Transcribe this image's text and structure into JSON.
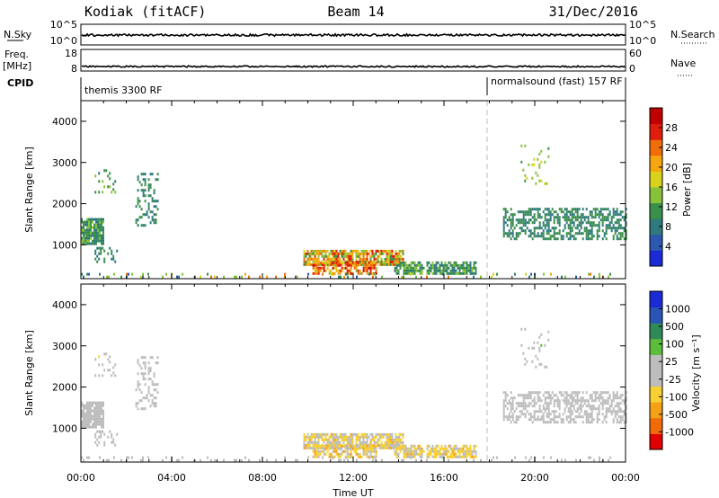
{
  "header": {
    "station": "Kodiak (fitACF)",
    "beam": "Beam 14",
    "date": "31/Dec/2016"
  },
  "strips": {
    "nsky_label": "N.Sky",
    "nsky_ticks": [
      "10^5",
      "10^0"
    ],
    "nsearch_label": "N.Search",
    "nsearch_ticks": [
      "10^5",
      "10^0"
    ],
    "freq_label_1": "Freq.",
    "freq_label_2": "[MHz]",
    "freq_ticks": [
      "18",
      "8"
    ],
    "nave_label": "Nave",
    "nave_ticks": [
      "60",
      "0"
    ],
    "cpid_label": "CPID",
    "cpid_mode_1": "themis 3300 RF",
    "cpid_mode_2": "normalsound (fast) 157 RF"
  },
  "chart_data": [
    {
      "type": "heatmap",
      "name": "power",
      "ylabel": "Slant Range [km]",
      "yticks": [
        1000,
        2000,
        3000,
        4000
      ],
      "ylim": [
        180,
        4500
      ],
      "xlim_hours": [
        0,
        24
      ],
      "colorbar": {
        "label": "Power [dB]",
        "ticks": [
          "4",
          "8",
          "12",
          "16",
          "20",
          "24",
          "28"
        ],
        "colors": [
          "#1a2bd6",
          "#2d58b0",
          "#2f7a7e",
          "#3b8f4a",
          "#86c23a",
          "#d8d21c",
          "#f5a50f",
          "#f06d0a",
          "#e01c0c",
          "#c00000"
        ],
        "range": [
          0,
          30
        ]
      },
      "regions": [
        {
          "t": [
            0.0,
            1.0
          ],
          "r": [
            1050,
            1650
          ],
          "v": [
            6,
            14
          ],
          "d": 0.9
        },
        {
          "t": [
            0.6,
            1.6
          ],
          "r": [
            600,
            950
          ],
          "v": [
            6,
            12
          ],
          "d": 0.4
        },
        {
          "t": [
            0.6,
            1.5
          ],
          "r": [
            2250,
            2900
          ],
          "v": [
            8,
            14
          ],
          "d": 0.25
        },
        {
          "t": [
            2.4,
            3.4
          ],
          "r": [
            1500,
            2750
          ],
          "v": [
            6,
            12
          ],
          "d": 0.3
        },
        {
          "t": [
            9.8,
            14.2
          ],
          "r": [
            500,
            880
          ],
          "v": [
            10,
            26
          ],
          "d": 0.8
        },
        {
          "t": [
            10.2,
            13.0
          ],
          "r": [
            300,
            600
          ],
          "v": [
            14,
            28
          ],
          "d": 0.7
        },
        {
          "t": [
            13.8,
            17.4
          ],
          "r": [
            320,
            600
          ],
          "v": [
            6,
            14
          ],
          "d": 0.7
        },
        {
          "t": [
            18.6,
            24.0
          ],
          "r": [
            1150,
            1900
          ],
          "v": [
            6,
            12
          ],
          "d": 0.55
        },
        {
          "t": [
            19.3,
            20.6
          ],
          "r": [
            2500,
            3500
          ],
          "v": [
            10,
            18
          ],
          "d": 0.12
        },
        {
          "t": [
            0.0,
            24.0
          ],
          "r": [
            190,
            320
          ],
          "v": [
            4,
            24
          ],
          "d": 0.12
        }
      ]
    },
    {
      "type": "heatmap",
      "name": "velocity",
      "ylabel": "Slant Range [km]",
      "xlabel": "Time UT",
      "xticks": [
        "00:00",
        "04:00",
        "08:00",
        "12:00",
        "16:00",
        "20:00",
        "00:00"
      ],
      "yticks": [
        1000,
        2000,
        3000,
        4000
      ],
      "ylim": [
        180,
        4500
      ],
      "xlim_hours": [
        0,
        24
      ],
      "colorbar": {
        "label": "Velocity [m s⁻¹]",
        "ticks": [
          "-1000",
          "-500",
          "-100",
          "-25",
          "25",
          "100",
          "500",
          "1000"
        ],
        "colors": [
          "#e00000",
          "#f26a0a",
          "#f5a019",
          "#f7d031",
          "#bdbdbd",
          "#bdbdbd",
          "#5bbd3a",
          "#2e8b57",
          "#2b55b5",
          "#1a2bd6"
        ],
        "range": [
          -1200,
          1200
        ]
      },
      "regions": [
        {
          "t": [
            0.0,
            1.0
          ],
          "r": [
            1050,
            1650
          ],
          "v": [
            -30,
            30
          ],
          "d": 0.9
        },
        {
          "t": [
            0.6,
            1.6
          ],
          "r": [
            600,
            950
          ],
          "v": [
            -200,
            -50
          ],
          "d": 0.4
        },
        {
          "t": [
            0.6,
            1.5
          ],
          "r": [
            2250,
            2900
          ],
          "v": [
            -300,
            200
          ],
          "d": 0.25
        },
        {
          "t": [
            2.4,
            3.4
          ],
          "r": [
            1500,
            2750
          ],
          "v": [
            -40,
            40
          ],
          "d": 0.3
        },
        {
          "t": [
            9.8,
            14.2
          ],
          "r": [
            500,
            880
          ],
          "v": [
            -500,
            20
          ],
          "d": 0.8
        },
        {
          "t": [
            10.2,
            13.0
          ],
          "r": [
            300,
            600
          ],
          "v": [
            -600,
            -100
          ],
          "d": 0.7
        },
        {
          "t": [
            13.8,
            17.4
          ],
          "r": [
            320,
            600
          ],
          "v": [
            -500,
            -100
          ],
          "d": 0.7
        },
        {
          "t": [
            18.6,
            24.0
          ],
          "r": [
            1150,
            1900
          ],
          "v": [
            -60,
            150
          ],
          "d": 0.55
        },
        {
          "t": [
            19.3,
            20.6
          ],
          "r": [
            2500,
            3500
          ],
          "v": [
            -300,
            300
          ],
          "d": 0.12
        },
        {
          "t": [
            0.0,
            24.0
          ],
          "r": [
            190,
            320
          ],
          "v": [
            -120,
            60
          ],
          "d": 0.12
        }
      ]
    }
  ]
}
